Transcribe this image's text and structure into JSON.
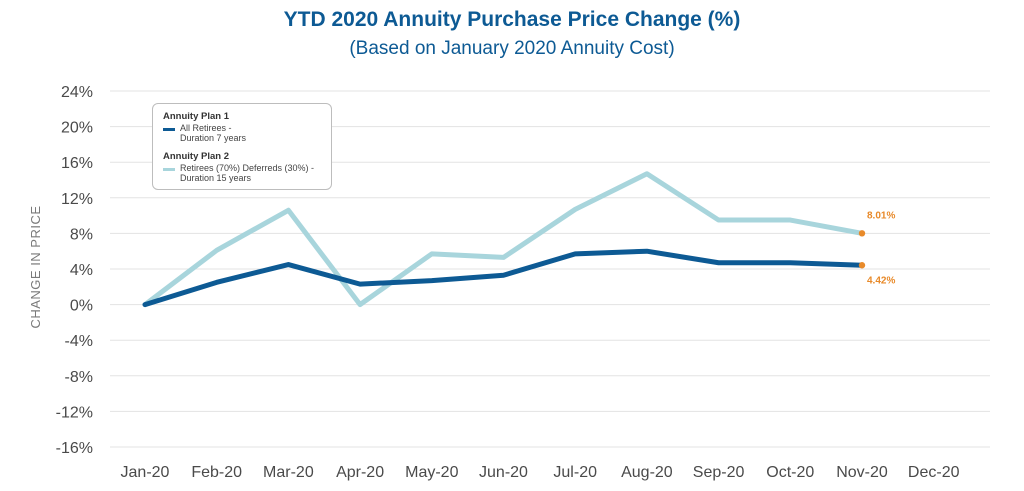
{
  "chart_data": {
    "type": "line",
    "title": "YTD 2020 Annuity Purchase Price Change (%)",
    "subtitle": "(Based on January 2020 Annuity Cost)",
    "ylabel": "CHANGE IN PRICE",
    "xlabel": "",
    "ylim": [
      -16,
      24
    ],
    "yticks": [
      -16,
      -12,
      -8,
      -4,
      0,
      4,
      8,
      12,
      16,
      20,
      24
    ],
    "ytick_labels": [
      "-16%",
      "-12%",
      "-8%",
      "-4%",
      "0%",
      "4%",
      "8%",
      "12%",
      "16%",
      "20%",
      "24%"
    ],
    "categories": [
      "Jan-20",
      "Feb-20",
      "Mar-20",
      "Apr-20",
      "May-20",
      "Jun-20",
      "Jul-20",
      "Aug-20",
      "Sep-20",
      "Oct-20",
      "Nov-20",
      "Dec-20"
    ],
    "grid": true,
    "legend_position": "top-left",
    "series": [
      {
        "name": "Annuity Plan 2",
        "line1": "Retirees (70%) Deferreds (30%) -",
        "line2": "Duration 15 years",
        "color": "#a8d5dc",
        "values": [
          0.0,
          6.1,
          10.6,
          0.0,
          5.7,
          5.3,
          10.7,
          14.7,
          9.5,
          9.5,
          8.01,
          null
        ],
        "end_label": "8.01%"
      },
      {
        "name": "Annuity Plan 1",
        "line1": "All Retirees -",
        "line2": "Duration 7 years",
        "color": "#0d5a94",
        "values": [
          0.0,
          2.5,
          4.5,
          2.3,
          2.7,
          3.3,
          5.7,
          6.0,
          4.7,
          4.7,
          4.42,
          null
        ],
        "end_label": "4.42%"
      }
    ],
    "marker_color": "#e88a2a"
  }
}
